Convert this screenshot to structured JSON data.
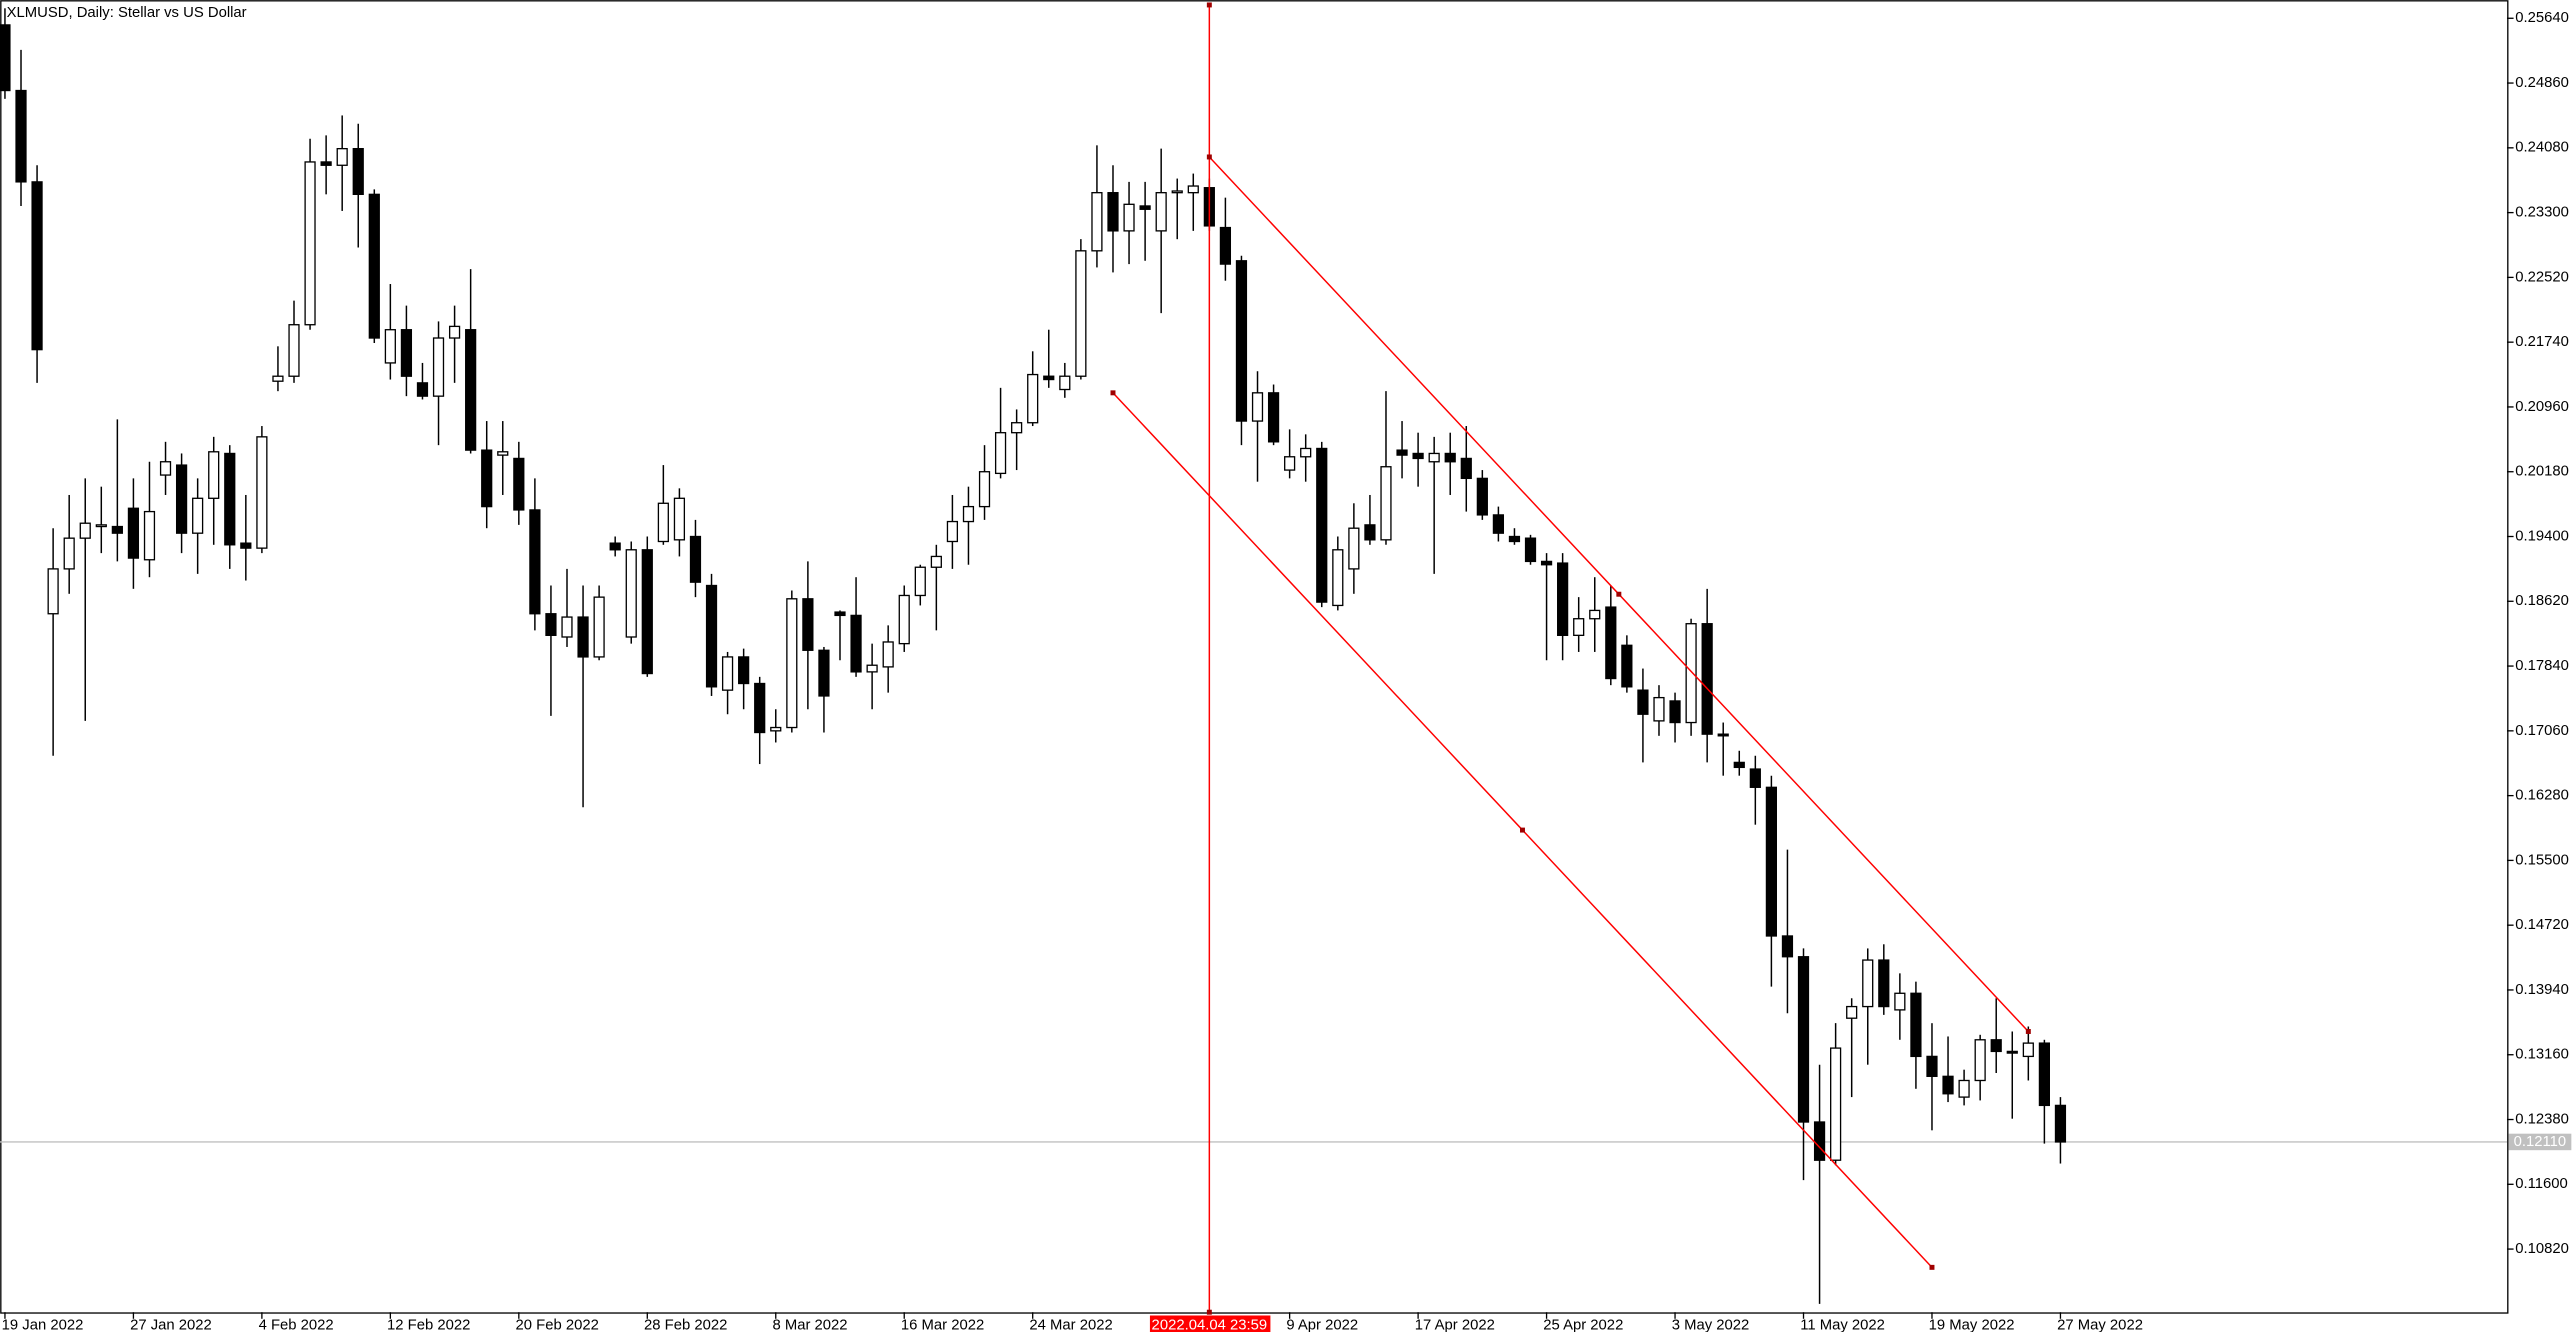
{
  "chart_data": {
    "type": "candlestick",
    "title": "XLMUSD, Daily:  Stellar vs US Dollar",
    "categories": [
      "19 Jan 2022",
      null,
      null,
      null,
      null,
      null,
      null,
      null,
      "27 Jan 2022",
      null,
      null,
      null,
      null,
      null,
      null,
      null,
      "4 Feb 2022",
      null,
      null,
      null,
      null,
      null,
      null,
      null,
      "12 Feb 2022",
      null,
      null,
      null,
      null,
      null,
      null,
      null,
      "20 Feb 2022",
      null,
      null,
      null,
      null,
      null,
      null,
      null,
      "28 Feb 2022",
      null,
      null,
      null,
      null,
      null,
      null,
      null,
      "8 Mar 2022",
      null,
      null,
      null,
      null,
      null,
      null,
      null,
      "16 Mar 2022",
      null,
      null,
      null,
      null,
      null,
      null,
      null,
      "24 Mar 2022",
      null,
      null,
      null,
      null,
      null,
      null,
      null,
      null,
      null,
      null,
      null,
      null,
      null,
      null,
      null,
      "9 Apr 2022",
      null,
      null,
      null,
      null,
      null,
      null,
      null,
      "17 Apr 2022",
      null,
      null,
      null,
      null,
      null,
      null,
      null,
      "25 Apr 2022",
      null,
      null,
      null,
      null,
      null,
      null,
      null,
      "3 May 2022",
      null,
      null,
      null,
      null,
      null,
      null,
      null,
      "11 May 2022",
      null,
      null,
      null,
      null,
      null,
      null,
      null,
      "19 May 2022",
      null,
      null,
      null,
      null,
      null,
      null,
      null,
      "27 May 2022"
    ],
    "open": [
      0.2556,
      0.2477,
      0.2367,
      0.1847,
      0.1901,
      0.1938,
      0.1952,
      0.1952,
      0.1974,
      0.1912,
      0.2014,
      0.2026,
      0.1944,
      0.1986,
      0.204,
      0.1932,
      0.1926,
      0.2127,
      0.2133,
      0.2195,
      0.2391,
      0.2387,
      0.2407,
      0.2352,
      0.2149,
      0.2189,
      0.2125,
      0.2109,
      0.2179,
      0.2189,
      0.2044,
      0.2038,
      0.2034,
      0.1972,
      0.1847,
      0.1819,
      0.1843,
      0.1795,
      0.1932,
      0.1819,
      0.1924,
      0.1934,
      0.1936,
      0.194,
      0.1881,
      0.1755,
      0.1795,
      0.1763,
      0.1706,
      0.171,
      0.1865,
      0.1803,
      0.1849,
      0.1845,
      0.1777,
      0.1783,
      0.1811,
      0.1869,
      0.1903,
      0.1934,
      0.1958,
      0.1976,
      0.2016,
      0.2065,
      0.2077,
      0.2133,
      0.2117,
      0.2133,
      0.2284,
      0.2354,
      0.2308,
      0.2338,
      0.2308,
      0.2354,
      0.2354,
      0.236,
      0.2312,
      0.2272,
      0.2079,
      0.2113,
      0.202,
      0.2036,
      0.2046,
      0.1857,
      0.1901,
      0.1954,
      0.1936,
      0.2044,
      0.204,
      0.203,
      0.204,
      0.2034,
      0.201,
      0.1966,
      0.194,
      0.1938,
      0.191,
      0.1908,
      0.1821,
      0.1841,
      0.1855,
      0.1809,
      0.1755,
      0.1718,
      0.1742,
      0.1716,
      0.1835,
      0.1702,
      0.1668,
      0.166,
      0.1638,
      0.1459,
      0.1434,
      0.1235,
      0.1189,
      0.136,
      0.1374,
      0.143,
      0.137,
      0.139,
      0.1314,
      0.129,
      0.1265,
      0.1285,
      0.1334,
      0.132,
      0.1314,
      0.133,
      0.1255
    ],
    "high": [
      0.2576,
      0.2526,
      0.2387,
      0.195,
      0.199,
      0.201,
      0.2,
      0.2081,
      0.201,
      0.203,
      0.2054,
      0.204,
      0.201,
      0.206,
      0.205,
      0.199,
      0.2073,
      0.2169,
      0.2224,
      0.2419,
      0.2423,
      0.2447,
      0.2437,
      0.2358,
      0.2244,
      0.2218,
      0.2149,
      0.2199,
      0.2218,
      0.2262,
      0.2079,
      0.2079,
      0.2054,
      0.201,
      0.1881,
      0.1901,
      0.1881,
      0.1881,
      0.194,
      0.1934,
      0.194,
      0.2026,
      0.1998,
      0.196,
      0.1895,
      0.1801,
      0.1805,
      0.1771,
      0.1732,
      0.1875,
      0.191,
      0.1807,
      0.1851,
      0.1891,
      0.1811,
      0.1833,
      0.1881,
      0.1906,
      0.193,
      0.199,
      0.2,
      0.205,
      0.2119,
      0.2093,
      0.2163,
      0.2189,
      0.2149,
      0.2298,
      0.2411,
      0.2387,
      0.2367,
      0.2367,
      0.2407,
      0.2371,
      0.2377,
      0.2371,
      0.2348,
      0.2278,
      0.2139,
      0.2123,
      0.2069,
      0.2063,
      0.2054,
      0.194,
      0.198,
      0.199,
      0.2115,
      0.2079,
      0.2065,
      0.206,
      0.2065,
      0.2073,
      0.202,
      0.1976,
      0.195,
      0.1942,
      0.192,
      0.192,
      0.1867,
      0.1891,
      0.1881,
      0.1821,
      0.1781,
      0.1761,
      0.1752,
      0.1841,
      0.1877,
      0.1716,
      0.1682,
      0.1676,
      0.1652,
      0.1563,
      0.1444,
      0.1304,
      0.1354,
      0.1384,
      0.1444,
      0.1449,
      0.1414,
      0.1404,
      0.1354,
      0.1338,
      0.1298,
      0.134,
      0.1384,
      0.1344,
      0.135,
      0.1334,
      0.1265
    ],
    "low": [
      0.2467,
      0.2338,
      0.2125,
      0.1676,
      0.1871,
      0.1718,
      0.192,
      0.191,
      0.1877,
      0.1891,
      0.199,
      0.192,
      0.1895,
      0.193,
      0.1901,
      0.1887,
      0.192,
      0.2115,
      0.2125,
      0.2189,
      0.2352,
      0.2332,
      0.2288,
      0.2173,
      0.2129,
      0.2109,
      0.2105,
      0.205,
      0.2125,
      0.204,
      0.195,
      0.199,
      0.1954,
      0.1827,
      0.1724,
      0.1807,
      0.1614,
      0.1791,
      0.1916,
      0.1811,
      0.1771,
      0.193,
      0.1916,
      0.1867,
      0.1748,
      0.1726,
      0.1732,
      0.1666,
      0.1692,
      0.1704,
      0.1732,
      0.1704,
      0.1791,
      0.1771,
      0.1732,
      0.1752,
      0.1801,
      0.1857,
      0.1827,
      0.1901,
      0.1906,
      0.196,
      0.201,
      0.202,
      0.2073,
      0.2119,
      0.2107,
      0.2129,
      0.2264,
      0.2258,
      0.2268,
      0.2272,
      0.2209,
      0.2298,
      0.2308,
      0.2308,
      0.2248,
      0.205,
      0.2006,
      0.205,
      0.201,
      0.2006,
      0.1855,
      0.1851,
      0.1871,
      0.193,
      0.193,
      0.201,
      0.2,
      0.1895,
      0.199,
      0.197,
      0.196,
      0.1934,
      0.193,
      0.1906,
      0.1791,
      0.1791,
      0.1801,
      0.1801,
      0.1761,
      0.1752,
      0.1668,
      0.17,
      0.1692,
      0.17,
      0.1668,
      0.1652,
      0.1652,
      0.1593,
      0.1398,
      0.1366,
      0.1165,
      0.1016,
      0.1183,
      0.1265,
      0.1304,
      0.1364,
      0.1334,
      0.1275,
      0.1225,
      0.1259,
      0.1255,
      0.1261,
      0.1294,
      0.1239,
      0.1285,
      0.1209,
      0.1185
    ],
    "close": [
      0.2477,
      0.2367,
      0.2165,
      0.1901,
      0.1938,
      0.1956,
      0.1954,
      0.1944,
      0.1914,
      0.197,
      0.203,
      0.1944,
      0.1986,
      0.2042,
      0.193,
      0.1926,
      0.206,
      0.2133,
      0.2195,
      0.2391,
      0.2387,
      0.2407,
      0.2352,
      0.2179,
      0.2189,
      0.2133,
      0.2109,
      0.2179,
      0.2193,
      0.2044,
      0.1976,
      0.2042,
      0.1972,
      0.1847,
      0.1821,
      0.1843,
      0.1795,
      0.1867,
      0.1924,
      0.1924,
      0.1775,
      0.198,
      0.1986,
      0.1885,
      0.1759,
      0.1795,
      0.1763,
      0.1704,
      0.171,
      0.1865,
      0.1803,
      0.1748,
      0.1845,
      0.1777,
      0.1785,
      0.1813,
      0.1869,
      0.1903,
      0.1916,
      0.1958,
      0.1976,
      0.2018,
      0.2065,
      0.2077,
      0.2135,
      0.2129,
      0.2133,
      0.2284,
      0.2354,
      0.2308,
      0.234,
      0.2334,
      0.2354,
      0.2356,
      0.2362,
      0.2314,
      0.2268,
      0.2079,
      0.2113,
      0.2054,
      0.2036,
      0.2046,
      0.1861,
      0.1924,
      0.195,
      0.1936,
      0.2024,
      0.2038,
      0.2034,
      0.204,
      0.203,
      0.201,
      0.1966,
      0.1944,
      0.1934,
      0.191,
      0.1906,
      0.1821,
      0.1841,
      0.1851,
      0.1769,
      0.1759,
      0.1726,
      0.1746,
      0.1716,
      0.1835,
      0.1702,
      0.17,
      0.1662,
      0.1638,
      0.1459,
      0.1434,
      0.1235,
      0.1189,
      0.1324,
      0.1374,
      0.143,
      0.1374,
      0.139,
      0.1314,
      0.129,
      0.1269,
      0.1285,
      0.1334,
      0.132,
      0.1318,
      0.133,
      0.1255,
      0.1211
    ],
    "up_color": "#ffffff",
    "down_color": "#000000",
    "ylim": [
      0.1006,
      0.2586
    ],
    "yticks": [
      {
        "value": 0.2564,
        "label": "0.25640"
      },
      {
        "value": 0.2486,
        "label": "0.24860"
      },
      {
        "value": 0.2408,
        "label": "0.24080"
      },
      {
        "value": 0.233,
        "label": "0.23300"
      },
      {
        "value": 0.2252,
        "label": "0.22520"
      },
      {
        "value": 0.2174,
        "label": "0.21740"
      },
      {
        "value": 0.2096,
        "label": "0.20960"
      },
      {
        "value": 0.2018,
        "label": "0.20180"
      },
      {
        "value": 0.194,
        "label": "0.19400"
      },
      {
        "value": 0.1862,
        "label": "0.18620"
      },
      {
        "value": 0.1784,
        "label": "0.17840"
      },
      {
        "value": 0.1706,
        "label": "0.17060"
      },
      {
        "value": 0.1628,
        "label": "0.16280"
      },
      {
        "value": 0.155,
        "label": "0.15500"
      },
      {
        "value": 0.1472,
        "label": "0.14720"
      },
      {
        "value": 0.1394,
        "label": "0.13940"
      },
      {
        "value": 0.1316,
        "label": "0.13160"
      },
      {
        "value": 0.1238,
        "label": "0.12380"
      },
      {
        "value": 0.116,
        "label": "0.11600"
      },
      {
        "value": 0.1082,
        "label": "0.10820"
      }
    ],
    "last_price": {
      "value": 0.1211,
      "label": "0.12110",
      "color": "#c0c0c0"
    },
    "vertical_line": {
      "x": 75,
      "label": "2022.04.04 23:59",
      "color": "#ff0000"
    },
    "trendlines": [
      {
        "x": [
          75,
          126
        ],
        "y": [
          0.2397,
          0.1344
        ],
        "color": "#ff0000"
      },
      {
        "x": [
          69,
          120
        ],
        "y": [
          0.2113,
          0.106
        ],
        "color": "#ff0000"
      }
    ]
  }
}
